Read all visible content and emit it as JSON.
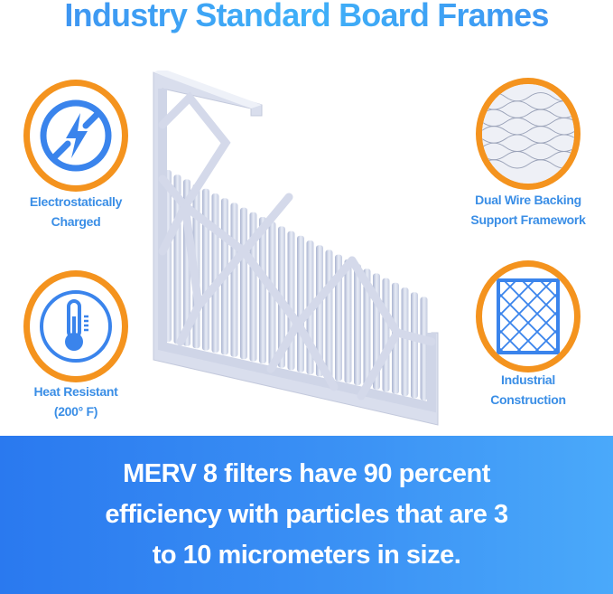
{
  "title": "Industry Standard Board Frames",
  "features": [
    {
      "icon": "no-static-lightning-icon",
      "line1": "Electrostatically",
      "line2": "Charged"
    },
    {
      "icon": "thermometer-icon",
      "line1": "Heat Resistant",
      "line2": "(200° F)"
    },
    {
      "icon": "wire-mesh-icon",
      "line1": "Dual Wire Backing",
      "line2": "Support Framework"
    },
    {
      "icon": "grid-frame-icon",
      "line1": "Industrial",
      "line2": "Construction"
    }
  ],
  "banner": {
    "line1": "MERV 8 filters have 90 percent",
    "line2": "efficiency with particles that are 3",
    "line3": "to 10 micrometers in size."
  },
  "colors": {
    "accent_blue": "#3a8ee6",
    "ring_orange": "#f4931e",
    "banner_blue": "#2a79ef"
  }
}
